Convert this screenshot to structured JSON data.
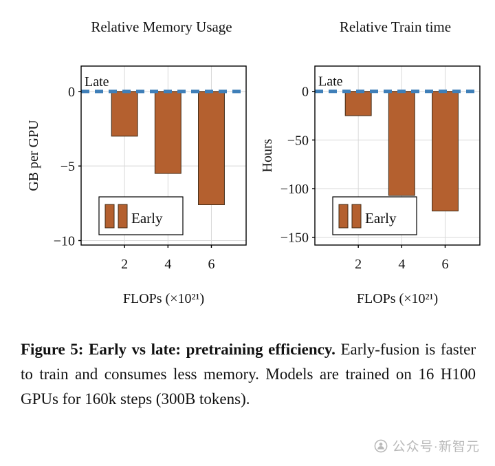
{
  "page": {
    "background": "#ffffff"
  },
  "colors": {
    "bar_fill": "#b4602f",
    "bar_edge": "#3f2a16",
    "baseline": "#3f7fb8",
    "baseline_text": "#4d87bb",
    "grid": "#d8d8d8",
    "axis": "#000000",
    "legend_text": "#3c3c3c"
  },
  "chart_data": [
    {
      "type": "bar",
      "title": "Relative Memory Usage",
      "ylabel": "GB per GPU",
      "xlabel": "FLOPs (×10²¹)",
      "x": [
        2,
        4,
        6
      ],
      "values": [
        -3.0,
        -5.5,
        -7.6
      ],
      "series_name": "Early",
      "baseline": {
        "label": "Late",
        "value": 0,
        "style": "dashed"
      },
      "yticks": [
        0,
        -5,
        -10
      ],
      "ytick_labels": [
        "0",
        "−5",
        "−10"
      ],
      "xtick_labels": [
        "2",
        "4",
        "6"
      ],
      "ylim": [
        -10.3,
        1.7
      ],
      "xlim": [
        0,
        7.6
      ],
      "bar_width": 1.2,
      "grid": true,
      "legend": {
        "label": "Early",
        "position": "lower left"
      }
    },
    {
      "type": "bar",
      "title": "Relative Train time",
      "ylabel": "Hours",
      "xlabel": "FLOPs (×10²¹)",
      "x": [
        2,
        4,
        6
      ],
      "values": [
        -25,
        -107,
        -123
      ],
      "series_name": "Early",
      "baseline": {
        "label": "Late",
        "value": 0,
        "style": "dashed"
      },
      "yticks": [
        0,
        -50,
        -100,
        -150
      ],
      "ytick_labels": [
        "0",
        "−50",
        "−100",
        "−150"
      ],
      "xtick_labels": [
        "2",
        "4",
        "6"
      ],
      "ylim": [
        -158,
        26
      ],
      "xlim": [
        0,
        7.6
      ],
      "bar_width": 1.2,
      "grid": true,
      "legend": {
        "label": "Early",
        "position": "lower left"
      }
    }
  ],
  "caption": {
    "bold": "Figure 5: Early vs late: pretraining efficiency.",
    "rest": " Early-fusion is faster to train and consumes less memory. Models are trained on 16 H100 GPUs for 160k steps (300B tokens)."
  },
  "watermark": {
    "icon": "wechat-official-account-icon",
    "text": "公众号·新智元"
  }
}
